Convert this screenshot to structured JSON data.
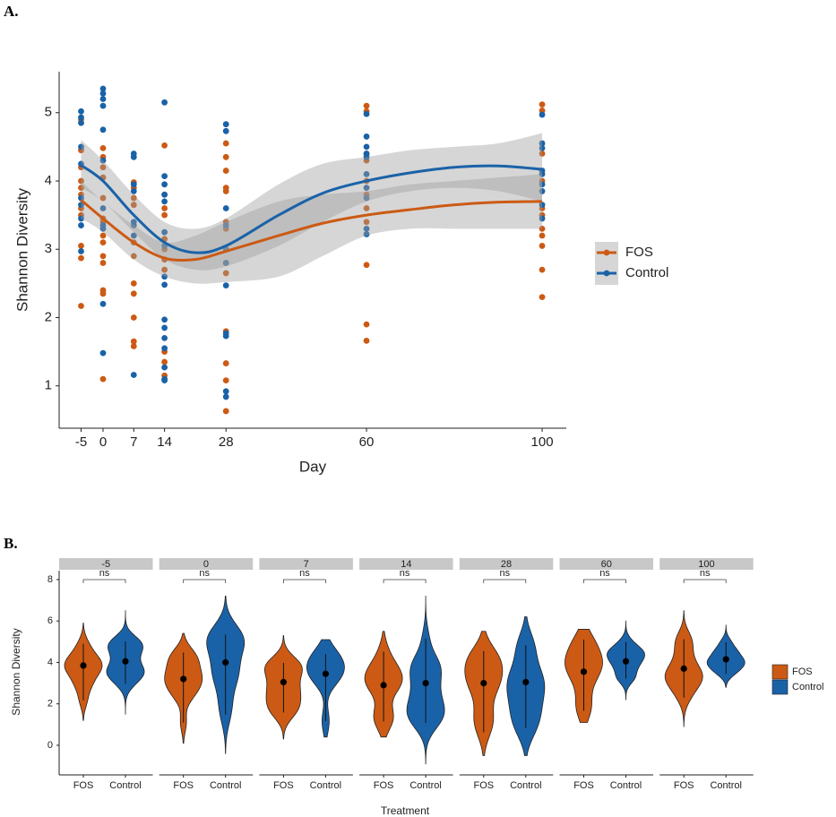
{
  "chart_data": [
    {
      "type": "scatter",
      "panel_label": "A.",
      "xlabel": "Day",
      "ylabel": "Shannon Diversity",
      "xlim": [
        -10,
        105.5
      ],
      "ylim": [
        0.38,
        5.6
      ],
      "xticks": [
        -5,
        0,
        7,
        14,
        28,
        60,
        100
      ],
      "yticks": [
        1,
        2,
        3,
        4,
        5
      ],
      "legend": "right",
      "band_color": "#9e9e9e",
      "series": [
        {
          "name": "FOS",
          "color": "#cc5a14",
          "x": [
            -5,
            -5,
            -5,
            -5,
            -5,
            -5,
            -5,
            -5,
            -5,
            -5,
            -5,
            0,
            0,
            0,
            0,
            0,
            0,
            0,
            0,
            0,
            0,
            0,
            0,
            0,
            0,
            7,
            7,
            7,
            7,
            7,
            7,
            7,
            7,
            7,
            7,
            7,
            14,
            14,
            14,
            14,
            14,
            14,
            14,
            14,
            14,
            14,
            14,
            28,
            28,
            28,
            28,
            28,
            28,
            28,
            28,
            28,
            28,
            28,
            28,
            28,
            28,
            60,
            60,
            60,
            60,
            60,
            60,
            60,
            60,
            60,
            60,
            60,
            100,
            100,
            100,
            100,
            100,
            100,
            100,
            100,
            100,
            100,
            100
          ],
          "values": [
            4.9,
            4.45,
            4.2,
            4.0,
            3.9,
            3.8,
            3.6,
            3.5,
            3.05,
            2.87,
            2.17,
            4.48,
            4.35,
            4.2,
            4.05,
            3.75,
            3.45,
            3.4,
            3.2,
            3.1,
            2.9,
            2.8,
            2.4,
            2.35,
            1.1,
            3.98,
            3.9,
            3.75,
            3.65,
            3.1,
            2.9,
            2.5,
            2.35,
            2.0,
            1.65,
            1.58,
            4.52,
            3.8,
            3.6,
            3.5,
            3.15,
            3.0,
            2.85,
            2.7,
            1.5,
            1.35,
            1.15,
            4.55,
            4.35,
            4.15,
            3.9,
            3.85,
            3.4,
            3.3,
            3.0,
            2.8,
            2.65,
            1.8,
            1.33,
            1.08,
            0.63,
            5.1,
            5.02,
            4.4,
            4.3,
            4.0,
            3.8,
            3.6,
            3.4,
            2.77,
            1.9,
            1.66,
            5.12,
            5.03,
            4.4,
            4.0,
            3.6,
            3.5,
            3.3,
            3.2,
            3.05,
            2.7,
            2.3
          ],
          "smooth": {
            "x": [
              -5,
              0,
              7,
              14,
              21,
              28,
              40,
              50,
              60,
              70,
              80,
              90,
              100
            ],
            "values": [
              3.72,
              3.45,
              3.1,
              2.87,
              2.85,
              2.97,
              3.2,
              3.38,
              3.5,
              3.58,
              3.65,
              3.69,
              3.7
            ],
            "lower": [
              3.45,
              3.25,
              2.85,
              2.6,
              2.5,
              2.52,
              2.6,
              2.9,
              3.2,
              3.3,
              3.3,
              3.3,
              3.3
            ],
            "upper": [
              4.0,
              3.7,
              3.35,
              3.1,
              3.2,
              3.4,
              3.7,
              3.8,
              3.85,
              3.95,
              4.0,
              4.05,
              4.1
            ]
          }
        },
        {
          "name": "Control",
          "color": "#1a62a8",
          "x": [
            -5,
            -5,
            -5,
            -5,
            -5,
            -5,
            -5,
            -5,
            -5,
            -5,
            0,
            0,
            0,
            0,
            0,
            0,
            0,
            0,
            0,
            0,
            0,
            7,
            7,
            7,
            7,
            7,
            7,
            7,
            7,
            14,
            14,
            14,
            14,
            14,
            14,
            14,
            14,
            14,
            14,
            14,
            14,
            14,
            14,
            14,
            14,
            28,
            28,
            28,
            28,
            28,
            28,
            28,
            28,
            28,
            28,
            28,
            60,
            60,
            60,
            60,
            60,
            60,
            60,
            60,
            60,
            60,
            100,
            100,
            100,
            100,
            100,
            100,
            100,
            100,
            100
          ],
          "values": [
            5.02,
            4.93,
            4.85,
            4.5,
            4.25,
            3.75,
            3.65,
            3.45,
            3.35,
            2.97,
            5.35,
            5.28,
            5.2,
            5.1,
            4.75,
            4.3,
            3.6,
            3.35,
            3.3,
            2.2,
            1.48,
            4.4,
            4.35,
            3.95,
            3.85,
            3.4,
            3.35,
            3.2,
            1.16,
            5.15,
            4.07,
            3.95,
            3.8,
            3.7,
            3.25,
            3.05,
            2.6,
            2.48,
            1.97,
            1.85,
            1.7,
            1.55,
            1.27,
            1.1,
            1.08,
            4.83,
            4.73,
            3.6,
            3.35,
            3.0,
            2.8,
            2.47,
            1.77,
            1.73,
            0.92,
            0.84,
            4.98,
            4.65,
            4.5,
            4.4,
            4.35,
            4.1,
            3.9,
            3.75,
            3.3,
            3.22,
            4.97,
            4.55,
            4.48,
            4.15,
            4.1,
            3.95,
            3.85,
            3.65,
            3.45
          ],
          "smooth": {
            "x": [
              -5,
              0,
              7,
              14,
              21,
              28,
              40,
              50,
              60,
              70,
              80,
              90,
              100
            ],
            "values": [
              4.23,
              4.0,
              3.5,
              3.1,
              2.95,
              3.05,
              3.5,
              3.82,
              4.0,
              4.12,
              4.2,
              4.22,
              4.17
            ],
            "lower": [
              3.9,
              3.7,
              3.25,
              2.85,
              2.7,
              2.75,
              3.05,
              3.4,
              3.7,
              3.85,
              3.9,
              3.85,
              3.7
            ],
            "upper": [
              4.6,
              4.3,
              3.8,
              3.4,
              3.3,
              3.45,
              3.95,
              4.25,
              4.35,
              4.45,
              4.5,
              4.55,
              4.7
            ]
          }
        }
      ]
    },
    {
      "type": "violin",
      "panel_label": "B.",
      "xlabel": "Treatment",
      "ylabel": "Shannon Diversity",
      "ylim": [
        -1.43,
        8.43
      ],
      "yticks": [
        0,
        2,
        4,
        6,
        8
      ],
      "legend": "right",
      "facets": [
        -5,
        0,
        7,
        14,
        28,
        60,
        100
      ],
      "annotations": [
        "ns",
        "ns",
        "ns",
        "ns",
        "ns",
        "ns",
        "ns"
      ],
      "categories": [
        "FOS",
        "Control"
      ],
      "series": [
        {
          "name": "FOS",
          "color": "#cc5a14",
          "values": [
            3.85,
            3.2,
            3.05,
            2.9,
            3.0,
            3.55,
            3.7
          ],
          "low": [
            1.2,
            0.1,
            0.3,
            0.4,
            -0.5,
            1.1,
            0.9
          ],
          "high": [
            5.9,
            5.4,
            5.3,
            5.5,
            5.5,
            5.6,
            6.5
          ]
        },
        {
          "name": "Control",
          "color": "#1a62a8",
          "values": [
            4.05,
            4.0,
            3.45,
            3.0,
            3.05,
            4.05,
            4.15
          ],
          "low": [
            1.5,
            -0.4,
            0.4,
            -0.9,
            -0.5,
            2.2,
            2.8
          ],
          "high": [
            6.5,
            7.2,
            5.1,
            7.2,
            6.2,
            6.0,
            5.8
          ]
        }
      ]
    }
  ]
}
